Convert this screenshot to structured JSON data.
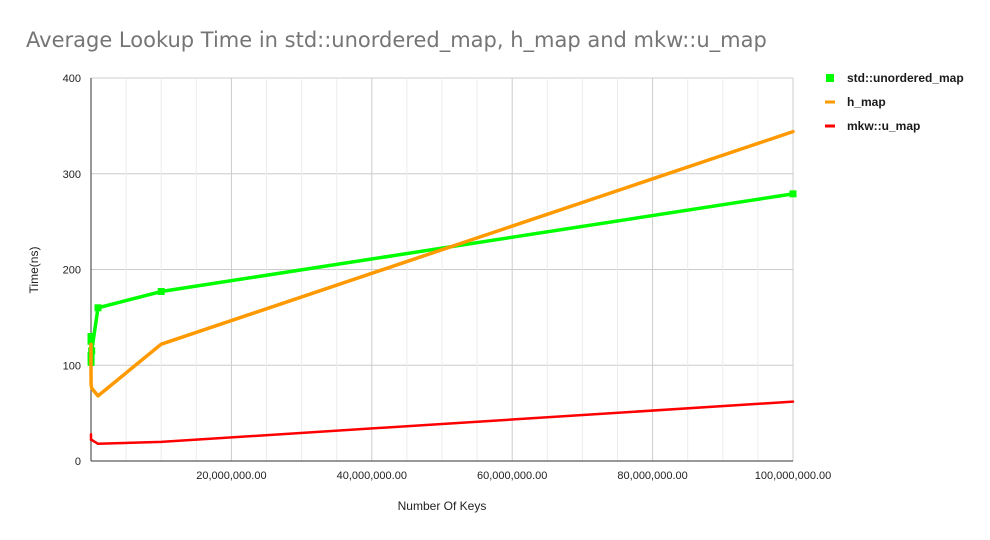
{
  "chart_data": {
    "type": "line",
    "title": "Average Lookup Time in std::unordered_map, h_map and mkw::u_map",
    "xlabel": "Number Of Keys",
    "ylabel": "Time(ns)",
    "xlim": [
      0,
      100000000
    ],
    "ylim": [
      0,
      400
    ],
    "xticks": [
      20000000,
      40000000,
      60000000,
      80000000,
      100000000
    ],
    "xtick_labels": [
      "20,000,000.00",
      "40,000,000.00",
      "60,000,000.00",
      "80,000,000.00",
      "100,000,000.00"
    ],
    "yticks": [
      0,
      100,
      200,
      300,
      400
    ],
    "ytick_labels": [
      "0",
      "100",
      "200",
      "300",
      "400"
    ],
    "grid": true,
    "legend_position": "right",
    "series": [
      {
        "name": "std::unordered_map",
        "color": "#00ff00",
        "marker": "square",
        "x": [
          10,
          100,
          1000,
          10000,
          100000,
          1000000,
          10000000,
          100000000
        ],
        "y": [
          130,
          125,
          110,
          103,
          115,
          160,
          177,
          279
        ]
      },
      {
        "name": "h_map",
        "color": "#ff9900",
        "marker": "none",
        "x": [
          10,
          100,
          1000,
          10000,
          100000,
          1000000,
          10000000,
          100000000
        ],
        "y": [
          122,
          110,
          95,
          80,
          76,
          68,
          122,
          344
        ]
      },
      {
        "name": "mkw::u_map",
        "color": "#ff0000",
        "marker": "none",
        "x": [
          10,
          100,
          1000,
          10000,
          100000,
          1000000,
          10000000,
          100000000
        ],
        "y": [
          28,
          24,
          22,
          23,
          22,
          18,
          20,
          62
        ]
      }
    ]
  }
}
